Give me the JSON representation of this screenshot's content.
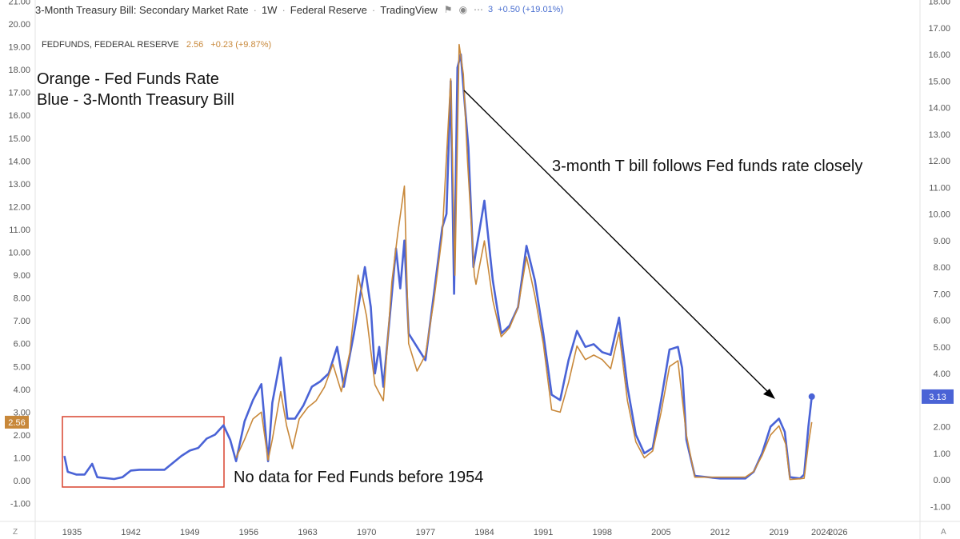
{
  "header": {
    "title": "3-Month Treasury Bill: Secondary Market Rate",
    "interval": "1W",
    "source": "Federal Reserve",
    "platform": "TradingView",
    "flag_icon": "flag-icon",
    "eye_icon": "eye-icon",
    "more_icon": "more-dots-icon",
    "count": "3",
    "change": "+0.50 (+19.01%)"
  },
  "fed_legend": {
    "name": "FEDFUNDS, FEDERAL RESERVE",
    "value": "2.56",
    "change": "+0.23 (+9.87%)"
  },
  "annotations": {
    "legend_line1": "Orange - Fed Funds Rate",
    "legend_line2": "Blue - 3-Month Treasury Bill",
    "follows": "3-month T bill follows Fed funds rate closely",
    "no_data": "No data for Fed Funds before 1954"
  },
  "axis_corner": {
    "left": "Z",
    "right": "A"
  },
  "colors": {
    "tbill": "#4a63d6",
    "fedfunds": "#c8883a",
    "box": "#d9432f",
    "badge_left": "#c8883a",
    "badge_right": "#4a63d6"
  },
  "chart_data": {
    "type": "line",
    "x_ticks": [
      "1935",
      "1942",
      "1949",
      "1956",
      "1963",
      "1970",
      "1977",
      "1984",
      "1991",
      "1998",
      "2005",
      "2012",
      "2019",
      "2024",
      "2026"
    ],
    "left_axis": {
      "ticks": [
        "21.00",
        "20.00",
        "19.00",
        "18.00",
        "17.00",
        "16.00",
        "15.00",
        "14.00",
        "13.00",
        "12.00",
        "11.00",
        "10.00",
        "9.00",
        "8.00",
        "7.00",
        "6.00",
        "5.00",
        "4.00",
        "3.00",
        "2.00",
        "1.00",
        "0.00",
        "-1.00"
      ],
      "range": [
        -1,
        21
      ],
      "badge": "2.56"
    },
    "right_axis": {
      "ticks": [
        "18.00",
        "17.00",
        "16.00",
        "15.00",
        "14.00",
        "13.00",
        "12.00",
        "11.00",
        "10.00",
        "9.00",
        "8.00",
        "7.00",
        "6.00",
        "5.00",
        "4.00",
        "3.00",
        "2.00",
        "1.00",
        "0.00",
        "-1.00"
      ],
      "range": [
        -1,
        18
      ],
      "badge": "3.13"
    },
    "series": [
      {
        "name": "Fed Funds Rate",
        "axis": "left",
        "points": [
          [
            1954.5,
            1.0
          ],
          [
            1955.5,
            1.8
          ],
          [
            1956.5,
            2.7
          ],
          [
            1957.5,
            3.0
          ],
          [
            1958.3,
            0.9
          ],
          [
            1958.8,
            1.8
          ],
          [
            1959.8,
            3.9
          ],
          [
            1960.5,
            2.4
          ],
          [
            1961.2,
            1.4
          ],
          [
            1962,
            2.7
          ],
          [
            1963,
            3.2
          ],
          [
            1964,
            3.5
          ],
          [
            1965,
            4.1
          ],
          [
            1966,
            5.1
          ],
          [
            1967,
            3.9
          ],
          [
            1968,
            5.6
          ],
          [
            1969,
            9.0
          ],
          [
            1970,
            7.2
          ],
          [
            1971,
            4.2
          ],
          [
            1972,
            3.5
          ],
          [
            1973,
            8.7
          ],
          [
            1973.7,
            10.8
          ],
          [
            1974.5,
            12.9
          ],
          [
            1975,
            6.0
          ],
          [
            1976,
            4.8
          ],
          [
            1977,
            5.5
          ],
          [
            1978,
            7.9
          ],
          [
            1979,
            10.8
          ],
          [
            1980,
            17.6
          ],
          [
            1980.5,
            9.0
          ],
          [
            1981,
            19.1
          ],
          [
            1981.5,
            17.8
          ],
          [
            1982,
            14.0
          ],
          [
            1982.8,
            9.0
          ],
          [
            1983,
            8.6
          ],
          [
            1984,
            10.5
          ],
          [
            1985,
            7.9
          ],
          [
            1986,
            6.3
          ],
          [
            1987,
            6.7
          ],
          [
            1988,
            7.6
          ],
          [
            1989,
            9.8
          ],
          [
            1990,
            8.1
          ],
          [
            1991,
            6.0
          ],
          [
            1992,
            3.1
          ],
          [
            1993,
            3.0
          ],
          [
            1994,
            4.3
          ],
          [
            1995,
            5.9
          ],
          [
            1996,
            5.3
          ],
          [
            1997,
            5.5
          ],
          [
            1998,
            5.3
          ],
          [
            1999,
            4.9
          ],
          [
            2000,
            6.5
          ],
          [
            2001,
            3.5
          ],
          [
            2002,
            1.7
          ],
          [
            2003,
            1.0
          ],
          [
            2004,
            1.3
          ],
          [
            2005,
            3.0
          ],
          [
            2006,
            5.0
          ],
          [
            2007,
            5.25
          ],
          [
            2008,
            2.0
          ],
          [
            2009,
            0.15
          ],
          [
            2012,
            0.15
          ],
          [
            2015,
            0.15
          ],
          [
            2016,
            0.4
          ],
          [
            2017,
            1.1
          ],
          [
            2018,
            2.0
          ],
          [
            2019,
            2.4
          ],
          [
            2019.8,
            1.6
          ],
          [
            2020.3,
            0.05
          ],
          [
            2021.5,
            0.08
          ],
          [
            2022.0,
            0.1
          ],
          [
            2022.5,
            1.6
          ],
          [
            2022.9,
            2.56
          ]
        ]
      },
      {
        "name": "3-Month Treasury Bill",
        "axis": "right",
        "points": [
          [
            1934.1,
            0.9
          ],
          [
            1934.5,
            0.3
          ],
          [
            1935.5,
            0.2
          ],
          [
            1936.5,
            0.2
          ],
          [
            1937.4,
            0.6
          ],
          [
            1938,
            0.1
          ],
          [
            1940,
            0.03
          ],
          [
            1941,
            0.1
          ],
          [
            1942,
            0.35
          ],
          [
            1943,
            0.38
          ],
          [
            1946,
            0.38
          ],
          [
            1948,
            0.9
          ],
          [
            1949,
            1.1
          ],
          [
            1950,
            1.2
          ],
          [
            1951,
            1.55
          ],
          [
            1952,
            1.7
          ],
          [
            1953,
            2.05
          ],
          [
            1953.8,
            1.5
          ],
          [
            1954.5,
            0.7
          ],
          [
            1955.5,
            2.2
          ],
          [
            1956.5,
            3.0
          ],
          [
            1957.5,
            3.6
          ],
          [
            1958.3,
            0.7
          ],
          [
            1958.8,
            2.9
          ],
          [
            1959.8,
            4.6
          ],
          [
            1960.6,
            2.3
          ],
          [
            1961.5,
            2.3
          ],
          [
            1962.5,
            2.8
          ],
          [
            1963.5,
            3.5
          ],
          [
            1964.5,
            3.7
          ],
          [
            1965.5,
            4.0
          ],
          [
            1966.5,
            5.0
          ],
          [
            1967.3,
            3.5
          ],
          [
            1968.5,
            5.5
          ],
          [
            1969.8,
            8.0
          ],
          [
            1970.5,
            6.5
          ],
          [
            1971,
            4.0
          ],
          [
            1971.5,
            5.0
          ],
          [
            1972,
            3.5
          ],
          [
            1973.5,
            8.7
          ],
          [
            1974,
            7.2
          ],
          [
            1974.5,
            9.0
          ],
          [
            1975,
            5.5
          ],
          [
            1976,
            5.0
          ],
          [
            1977,
            4.5
          ],
          [
            1978,
            7.0
          ],
          [
            1979,
            9.5
          ],
          [
            1979.5,
            10.0
          ],
          [
            1980,
            15.0
          ],
          [
            1980.4,
            7.0
          ],
          [
            1980.8,
            15.5
          ],
          [
            1981.2,
            16.0
          ],
          [
            1981.7,
            14.0
          ],
          [
            1982.1,
            12.5
          ],
          [
            1982.7,
            8.0
          ],
          [
            1983,
            8.6
          ],
          [
            1984,
            10.5
          ],
          [
            1985,
            7.5
          ],
          [
            1986,
            5.5
          ],
          [
            1987,
            5.8
          ],
          [
            1988,
            6.5
          ],
          [
            1989,
            8.8
          ],
          [
            1990,
            7.5
          ],
          [
            1991,
            5.5
          ],
          [
            1992,
            3.2
          ],
          [
            1993,
            3.0
          ],
          [
            1994,
            4.5
          ],
          [
            1995,
            5.6
          ],
          [
            1996,
            5.0
          ],
          [
            1997,
            5.1
          ],
          [
            1998,
            4.8
          ],
          [
            1999,
            4.7
          ],
          [
            2000,
            6.1
          ],
          [
            2001,
            3.5
          ],
          [
            2002,
            1.7
          ],
          [
            2003,
            1.0
          ],
          [
            2004,
            1.2
          ],
          [
            2005,
            3.0
          ],
          [
            2006,
            4.9
          ],
          [
            2007,
            5.0
          ],
          [
            2007.5,
            4.2
          ],
          [
            2008,
            1.5
          ],
          [
            2009,
            0.15
          ],
          [
            2012,
            0.05
          ],
          [
            2015,
            0.05
          ],
          [
            2016,
            0.3
          ],
          [
            2017,
            1.0
          ],
          [
            2018,
            2.0
          ],
          [
            2019,
            2.3
          ],
          [
            2019.7,
            1.8
          ],
          [
            2020.3,
            0.1
          ],
          [
            2021.5,
            0.05
          ],
          [
            2022.0,
            0.2
          ],
          [
            2022.5,
            2.0
          ],
          [
            2022.9,
            3.13
          ]
        ]
      }
    ]
  }
}
